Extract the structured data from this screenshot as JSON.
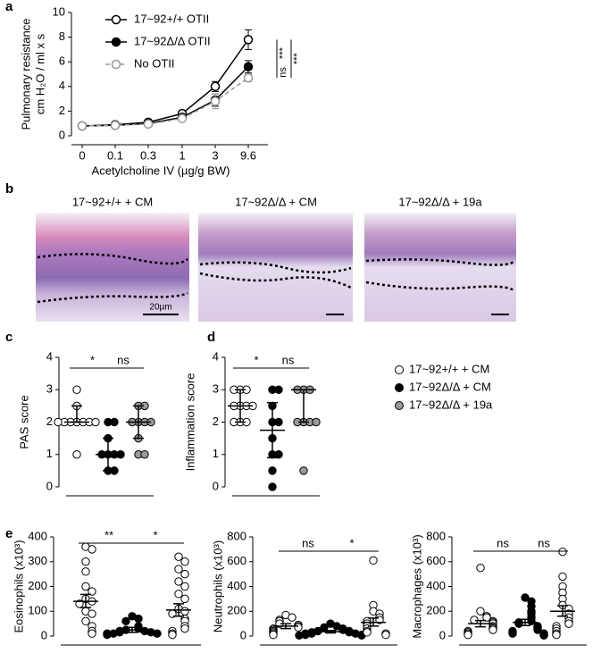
{
  "chart_data": [
    {
      "type": "line",
      "panel": "a",
      "ylabel": [
        "Pulmonary resistance",
        "cm H₂O / ml x s"
      ],
      "xlabel": "Acetylcholine IV (µg/g BW)",
      "categories": [
        "0",
        "0.1",
        "0.3",
        "1",
        "3",
        "9.6"
      ],
      "ylim": [
        0,
        10
      ],
      "yticks": [
        0,
        2,
        4,
        6,
        8,
        10
      ],
      "series": [
        {
          "name": "17~92+/+ OTII",
          "color": "#000000",
          "marker_fill": "#ffffff",
          "line_style": "solid",
          "values": [
            0.8,
            0.9,
            1.1,
            1.8,
            4.0,
            7.8
          ],
          "errors": [
            0.1,
            0.1,
            0.15,
            0.15,
            0.4,
            0.8
          ]
        },
        {
          "name": "17~92Δ/Δ OTII",
          "color": "#000000",
          "marker_fill": "#000000",
          "line_style": "solid",
          "values": [
            0.8,
            0.85,
            1.0,
            1.5,
            2.9,
            5.6
          ],
          "errors": [
            0.1,
            0.1,
            0.1,
            0.15,
            0.5,
            0.5
          ]
        },
        {
          "name": "No OTII",
          "color": "#999999",
          "marker_fill": "#ffffff",
          "line_style": "dashed",
          "values": [
            0.8,
            0.85,
            0.95,
            1.4,
            2.8,
            4.7
          ],
          "errors": [
            0.1,
            0.1,
            0.1,
            0.1,
            0.6,
            0.3
          ]
        }
      ],
      "significance": [
        "***",
        "***",
        "ns"
      ]
    },
    {
      "type": "dot",
      "panel": "c",
      "ylabel": "PAS score",
      "ylim": [
        0,
        4
      ],
      "yticks": [
        0,
        1,
        2,
        3,
        4
      ],
      "series": [
        {
          "color": "#ffffff",
          "values": [
            3,
            2.5,
            2,
            2,
            2,
            2,
            2,
            2,
            2,
            1
          ],
          "center": 2,
          "low": 2,
          "high": 2.5
        },
        {
          "color": "#000000",
          "values": [
            2,
            2,
            1.5,
            1,
            1,
            1,
            1,
            0.5,
            0.5
          ],
          "center": 1,
          "low": 0.5,
          "high": 1.5
        },
        {
          "color": "#999999",
          "values": [
            2.5,
            2.5,
            2,
            2,
            2,
            2,
            1.5,
            1,
            1
          ],
          "center": 2,
          "low": 1.5,
          "high": 2.5
        }
      ],
      "significance": [
        "*",
        "ns"
      ]
    },
    {
      "type": "dot",
      "panel": "d",
      "ylabel": "Inflammation score",
      "ylim": [
        0,
        4
      ],
      "yticks": [
        0,
        1,
        2,
        3,
        4
      ],
      "series": [
        {
          "name": "17~92+/+ + CM",
          "color": "#ffffff",
          "values": [
            3,
            3,
            3,
            2.5,
            2.5,
            2.5,
            2.5,
            2,
            2,
            2
          ],
          "center": 2.5,
          "low": 2,
          "high": 3
        },
        {
          "name": "17~92Δ/Δ + CM",
          "color": "#000000",
          "values": [
            3,
            3,
            2.5,
            2,
            2,
            1.5,
            1,
            1,
            0.5,
            0
          ],
          "center": 1.75,
          "low": 0.9,
          "high": 2.6
        },
        {
          "name": "17~92Δ/Δ + 19a",
          "color": "#999999",
          "values": [
            3,
            3,
            3,
            2,
            2,
            2,
            2,
            0.5
          ],
          "center": 3,
          "low": 2,
          "high": 3
        }
      ],
      "significance": [
        "*",
        "ns"
      ]
    },
    {
      "type": "dot",
      "panel": "e",
      "ylabel": "Eosinophils (x10³)",
      "ylim": [
        0,
        400
      ],
      "yticks": [
        0,
        100,
        200,
        300,
        400
      ],
      "series": [
        {
          "color": "#ffffff",
          "values": [
            360,
            350,
            300,
            260,
            200,
            180,
            150,
            140,
            130,
            100,
            90,
            60,
            40,
            20,
            10
          ],
          "center": 140,
          "low": 115,
          "high": 168
        },
        {
          "color": "#000000",
          "values": [
            80,
            70,
            60,
            40,
            30,
            25,
            20,
            20,
            15,
            15,
            10,
            10,
            10,
            5
          ],
          "center": 25,
          "low": 15,
          "high": 35
        },
        {
          "color": "#ffffff",
          "values": [
            320,
            300,
            270,
            250,
            220,
            200,
            170,
            150,
            110,
            100,
            90,
            70,
            60,
            40,
            30,
            20,
            10,
            5
          ],
          "center": 105,
          "low": 80,
          "high": 130
        }
      ],
      "significance": [
        "**",
        "*"
      ]
    },
    {
      "type": "dot",
      "ylabel": "Neutrophils (x10³)",
      "ylim": [
        0,
        800
      ],
      "yticks": [
        0,
        200,
        400,
        600,
        800
      ],
      "series": [
        {
          "color": "#ffffff",
          "values": [
            170,
            150,
            130,
            120,
            100,
            90,
            80,
            70,
            60,
            50,
            40,
            30,
            20,
            10
          ],
          "center": 80,
          "low": 60,
          "high": 100
        },
        {
          "color": "#000000",
          "values": [
            100,
            80,
            70,
            60,
            50,
            40,
            40,
            30,
            30,
            20,
            20,
            20,
            10,
            10,
            5,
            5
          ],
          "center": 35,
          "low": 25,
          "high": 45
        },
        {
          "color": "#ffffff",
          "values": [
            610,
            250,
            200,
            180,
            150,
            130,
            120,
            100,
            80,
            60,
            40,
            30,
            20,
            10
          ],
          "center": 110,
          "low": 80,
          "high": 145
        }
      ],
      "significance": [
        "ns",
        "*"
      ]
    },
    {
      "type": "dot",
      "ylabel": "Macrophages (x10³)",
      "ylim": [
        0,
        800
      ],
      "yticks": [
        0,
        200,
        400,
        600,
        800
      ],
      "series": [
        {
          "color": "#ffffff",
          "values": [
            550,
            200,
            160,
            150,
            130,
            120,
            110,
            100,
            80,
            70,
            60,
            50,
            40,
            30,
            20,
            10
          ],
          "center": 100,
          "low": 75,
          "high": 125
        },
        {
          "color": "#000000",
          "values": [
            310,
            280,
            240,
            200,
            180,
            150,
            120,
            110,
            100,
            80,
            70,
            60,
            50,
            40,
            30,
            20,
            20,
            10,
            5
          ],
          "center": 110,
          "low": 85,
          "high": 135
        },
        {
          "color": "#ffffff",
          "values": [
            680,
            480,
            400,
            350,
            300,
            250,
            220,
            180,
            150,
            120,
            100,
            80,
            60,
            40,
            20,
            10
          ],
          "center": 200,
          "low": 160,
          "high": 245
        }
      ],
      "significance": [
        "ns",
        "ns"
      ]
    }
  ],
  "histology": {
    "panel": "b",
    "titles": [
      "17~92+/+ + CM",
      "17~92Δ/Δ + CM",
      "17~92Δ/Δ + 19a"
    ],
    "scale_bar": "20µm"
  }
}
